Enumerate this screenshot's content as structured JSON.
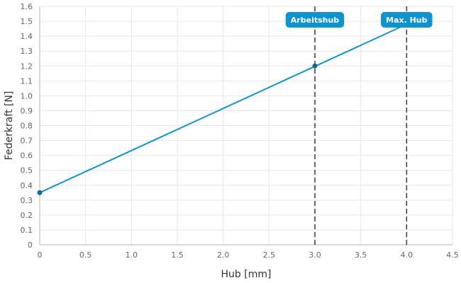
{
  "chart_data": {
    "type": "line",
    "xlabel": "Hub [mm]",
    "ylabel": "Federkraft [N]",
    "xlim": [
      0,
      4.5
    ],
    "ylim": [
      0,
      1.6
    ],
    "x_ticks": [
      "0",
      "0.5",
      "1.0",
      "1.5",
      "2.0",
      "2.5",
      "3.0",
      "3.5",
      "4.0",
      "4.5"
    ],
    "y_ticks": [
      "0",
      "0.1",
      "0.2",
      "0.3",
      "0.4",
      "0.5",
      "0.6",
      "0.7",
      "0.8",
      "0.9",
      "1.0",
      "1.1",
      "1.2",
      "1.3",
      "1.4",
      "1.5",
      "1.6"
    ],
    "grid": true,
    "series": [
      {
        "color": "#0e93cf",
        "points": [
          {
            "x": 0,
            "y": 0.35
          },
          {
            "x": 4.0,
            "y": 1.48
          }
        ]
      }
    ],
    "markers": [
      {
        "x": 0,
        "y": 0.35
      },
      {
        "x": 3.0,
        "y": 1.2
      }
    ],
    "annotations": [
      {
        "label": "Arbeitshub",
        "x": 3.0
      },
      {
        "label": "Max. Hub",
        "x": 4.0
      }
    ],
    "badge_color": "#0e93cf",
    "vline_color": "#444444"
  }
}
